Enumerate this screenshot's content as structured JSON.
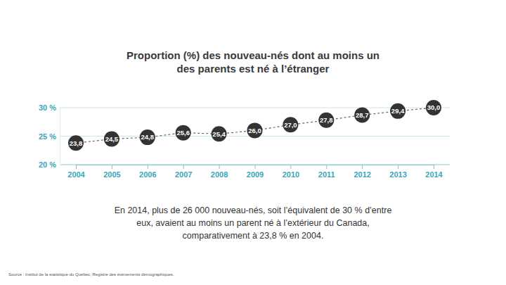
{
  "chart_data": {
    "type": "line",
    "title": [
      "Proportion (%) des nouveau-nés dont au moins un",
      "des parents est né à l’étranger"
    ],
    "categories": [
      "2004",
      "2005",
      "2006",
      "2007",
      "2008",
      "2009",
      "2010",
      "2011",
      "2012",
      "2013",
      "2014"
    ],
    "values": [
      23.8,
      24.5,
      24.8,
      25.6,
      25.4,
      26.0,
      27.0,
      27.8,
      28.7,
      29.4,
      30.0
    ],
    "value_labels": [
      "23,8",
      "24,5",
      "24,8",
      "25,6",
      "25,4",
      "26,0",
      "27,0",
      "27,8",
      "28,7",
      "29,4",
      "30,0"
    ],
    "color": "#333333",
    "marker": "circle",
    "line_style": "dashed",
    "data_labels": true,
    "grid": true,
    "ylim": [
      20,
      30
    ],
    "yticks": [
      {
        "value": 20,
        "label": "20 %"
      },
      {
        "value": 25,
        "label": "25 %"
      },
      {
        "value": 30,
        "label": "30 %"
      }
    ],
    "annotations": [
      "En 2014, plus de 26 000 nouveau-nés, soit l’équivalent de 30 % d’entre",
      "eux, avaient au moins un parent né à l’extérieur du Canada,",
      "comparativement à 23,8 % en 2004."
    ],
    "source": "Source : Institut de la statistique du Québec, Registre des événements démographiques."
  }
}
